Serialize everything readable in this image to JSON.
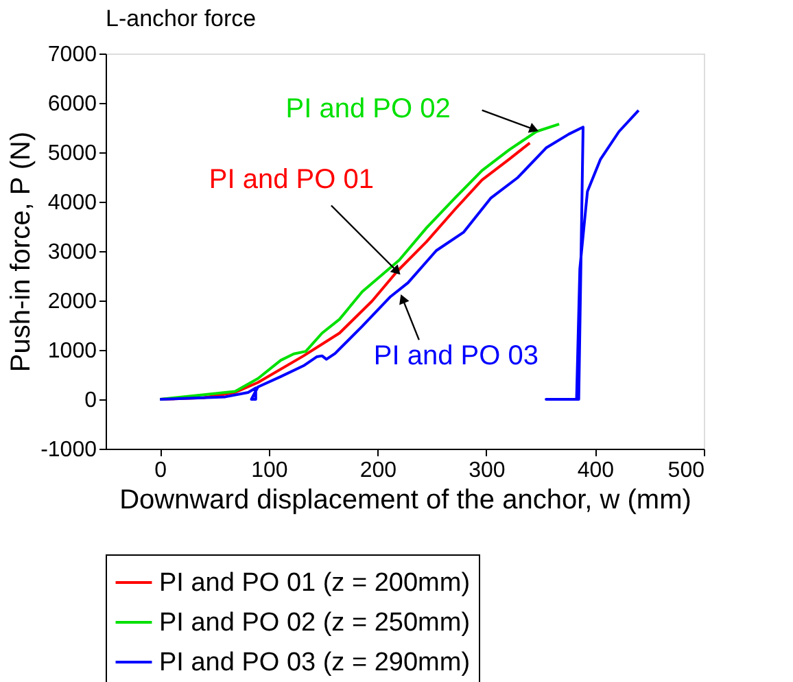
{
  "chart_data": {
    "type": "line",
    "title": "L-anchor force",
    "xlabel": "Downward displacement of the anchor, w (mm)",
    "ylabel": "Push-in force, P (N)",
    "xlim": [
      -50,
      500
    ],
    "xticks": [
      0,
      100,
      200,
      300,
      400,
      500
    ],
    "ylim": [
      -1000,
      7000
    ],
    "yticks": [
      -1000,
      0,
      1000,
      2000,
      3000,
      4000,
      5000,
      6000,
      7000
    ],
    "grid": false,
    "legend": "bottom",
    "marker": "none",
    "line_style": "solid",
    "series": [
      {
        "name": "PI and PO 01 (z = 200mm)",
        "color": "#ff0000",
        "x": [
          0,
          40,
          69,
          90,
          132,
          165,
          195,
          218,
          245,
          271,
          296,
          321,
          340
        ],
        "values": [
          0,
          30,
          140,
          340,
          880,
          1340,
          1990,
          2590,
          3190,
          3840,
          4440,
          4860,
          5190
        ]
      },
      {
        "name": "PI and PO 02 (z = 250mm)",
        "color": "#00e000",
        "x": [
          0,
          39,
          69,
          90,
          111,
          123,
          134,
          149,
          165,
          186,
          203,
          220,
          245,
          271,
          296,
          321,
          346,
          367
        ],
        "values": [
          0,
          90,
          160,
          420,
          790,
          920,
          970,
          1340,
          1620,
          2180,
          2500,
          2820,
          3470,
          4070,
          4630,
          5050,
          5420,
          5570
        ]
      },
      {
        "name": "PI and PO 03 (z = 290mm)",
        "color": "#0000ff",
        "x": [
          0,
          60,
          81,
          88,
          88,
          84,
          90,
          111,
          132,
          144,
          149,
          153,
          161,
          186,
          212,
          228,
          254,
          279,
          304,
          329,
          355,
          376,
          389,
          385,
          355,
          383,
          386,
          393,
          405,
          422,
          440
        ],
        "values": [
          0,
          50,
          140,
          230,
          0,
          0,
          250,
          460,
          680,
          860,
          880,
          810,
          930,
          1480,
          2080,
          2360,
          3010,
          3380,
          4070,
          4490,
          5090,
          5370,
          5510,
          0,
          0,
          0,
          2640,
          4210,
          4860,
          5420,
          5850
        ]
      }
    ],
    "annotations": [
      {
        "text": "PI and PO 01",
        "x": 218,
        "y": 2590
      },
      {
        "text": "PI and PO 02",
        "x": 344,
        "y": 5463
      },
      {
        "text": "PI and PO 03",
        "x": 223,
        "y": 2037
      }
    ]
  }
}
